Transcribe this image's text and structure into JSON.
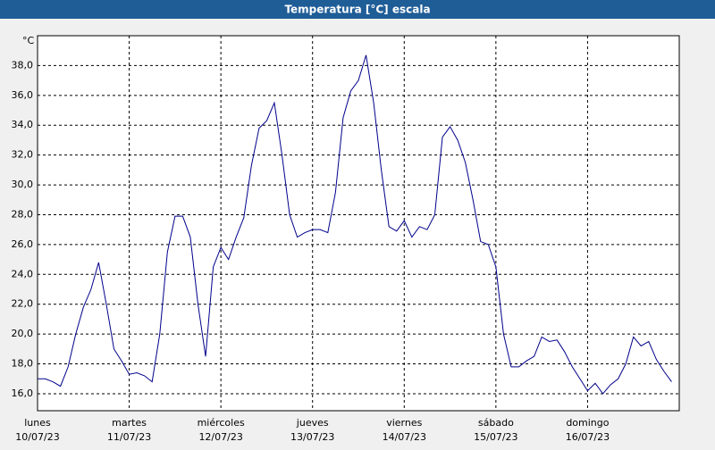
{
  "chart_data": {
    "type": "line",
    "title": "Temperatura [°C] escala",
    "y_unit": "°C",
    "color": "#00008b",
    "grid": true,
    "xlim": [
      0,
      168
    ],
    "ylim": [
      14.86,
      40.0
    ],
    "yticks": [
      {
        "value": 16,
        "label": "16,0"
      },
      {
        "value": 18,
        "label": "18,0"
      },
      {
        "value": 20,
        "label": "20,0"
      },
      {
        "value": 22,
        "label": "22,0"
      },
      {
        "value": 24,
        "label": "24,0"
      },
      {
        "value": 26,
        "label": "26,0"
      },
      {
        "value": 28,
        "label": "28,0"
      },
      {
        "value": 30,
        "label": "30,0"
      },
      {
        "value": 32,
        "label": "32,0"
      },
      {
        "value": 34,
        "label": "34,0"
      },
      {
        "value": 36,
        "label": "36,0"
      },
      {
        "value": 38,
        "label": "38,0"
      }
    ],
    "xticks": [
      {
        "value": 0,
        "label": "lunes"
      },
      {
        "value": 24,
        "label": "martes"
      },
      {
        "value": 48,
        "label": "miércoles"
      },
      {
        "value": 72,
        "label": "jueves"
      },
      {
        "value": 96,
        "label": "viernes"
      },
      {
        "value": 120,
        "label": "sábado"
      },
      {
        "value": 144,
        "label": "domingo"
      }
    ],
    "xtick_dates": [
      "10/07/23",
      "11/07/23",
      "12/07/23",
      "13/07/23",
      "14/07/23",
      "15/07/23",
      "16/07/23"
    ],
    "x": [
      0,
      2,
      4,
      6,
      8,
      10,
      12,
      14,
      16,
      18,
      20,
      22,
      24,
      26,
      28,
      30,
      32,
      34,
      36,
      38,
      40,
      42,
      44,
      46,
      48,
      50,
      52,
      54,
      56,
      58,
      60,
      62,
      64,
      66,
      68,
      70,
      72,
      74,
      76,
      78,
      80,
      82,
      84,
      86,
      88,
      90,
      92,
      94,
      96,
      98,
      100,
      102,
      104,
      106,
      108,
      110,
      112,
      114,
      116,
      118,
      120,
      122,
      124,
      126,
      128,
      130,
      132,
      134,
      136,
      138,
      140,
      142,
      144,
      146,
      148,
      150,
      152,
      154,
      156,
      158,
      160,
      162,
      164,
      166
    ],
    "values": [
      17.0,
      17.0,
      16.8,
      16.5,
      17.8,
      20.0,
      21.8,
      23.0,
      24.8,
      22.0,
      19.0,
      18.2,
      17.3,
      17.4,
      17.2,
      16.8,
      20.0,
      25.5,
      27.9,
      27.9,
      26.5,
      22.0,
      18.5,
      24.5,
      25.8,
      25.0,
      26.5,
      27.8,
      31.3,
      33.8,
      34.3,
      35.5,
      32.0,
      28.0,
      26.5,
      26.8,
      27.0,
      27.0,
      26.8,
      29.5,
      34.5,
      36.3,
      37.0,
      38.7,
      35.5,
      31.0,
      27.2,
      26.9,
      27.6,
      26.5,
      27.2,
      27.0,
      28.0,
      33.2,
      33.9,
      33.0,
      31.5,
      29.0,
      26.2,
      26.0,
      24.5,
      20.0,
      17.8,
      17.8,
      18.2,
      18.5,
      19.8,
      19.5,
      19.6,
      18.8,
      17.8,
      17.0,
      16.2,
      16.7,
      16.0,
      16.6,
      17.0,
      18.0,
      19.8,
      19.2,
      19.5,
      18.3,
      17.5,
      16.8
    ]
  }
}
